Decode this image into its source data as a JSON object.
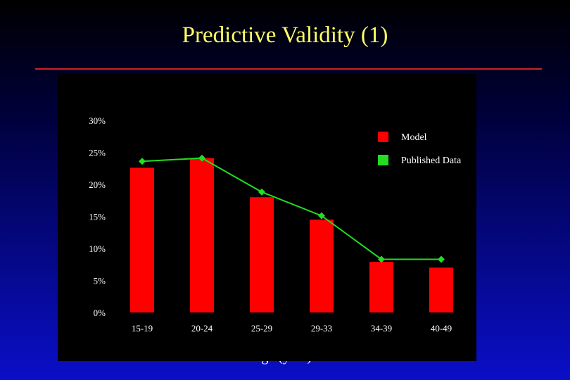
{
  "slide": {
    "title": "Predictive Validity (1)",
    "x_caption": "Age (year)"
  },
  "colors": {
    "model": "#ff0000",
    "published": "#22dd22",
    "title": "#ffff66"
  },
  "chart_data": {
    "type": "bar",
    "title": "",
    "xlabel": "Age (year)",
    "ylabel": "",
    "categories": [
      "15-19",
      "20-24",
      "25-29",
      "29-33",
      "34-39",
      "40-49"
    ],
    "ylim": [
      0,
      30
    ],
    "yticks": [
      "0%",
      "5%",
      "10%",
      "15%",
      "20%",
      "25%",
      "30%"
    ],
    "grid": false,
    "legend_position": "top-right",
    "series": [
      {
        "name": "Model",
        "type": "bar",
        "values": [
          22.6,
          24.1,
          18.0,
          14.5,
          7.9,
          7.0
        ]
      },
      {
        "name": "Published Data",
        "type": "line",
        "values": [
          23.6,
          24.1,
          18.8,
          15.1,
          8.3,
          8.3
        ]
      }
    ]
  }
}
